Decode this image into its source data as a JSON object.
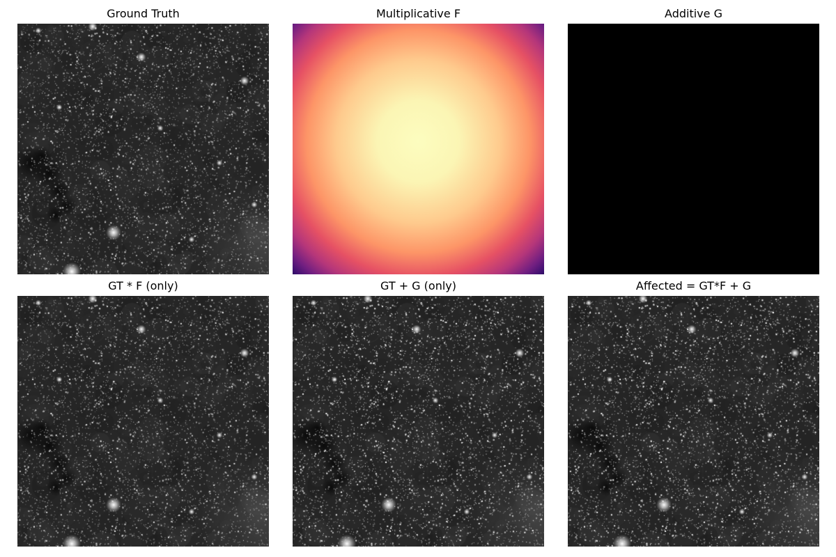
{
  "panels": [
    {
      "title": "Ground Truth",
      "render": "starfield",
      "variant": "base"
    },
    {
      "title": "Multiplicative F",
      "render": "gradient",
      "colormap": "magma"
    },
    {
      "title": "Additive G",
      "render": "flat",
      "color": "#000000"
    },
    {
      "title": "GT * F (only)",
      "render": "starfield",
      "variant": "base"
    },
    {
      "title": "GT + G (only)",
      "render": "starfield",
      "variant": "bright"
    },
    {
      "title": "Affected = GT*F + G",
      "render": "starfield",
      "variant": "bright"
    }
  ]
}
